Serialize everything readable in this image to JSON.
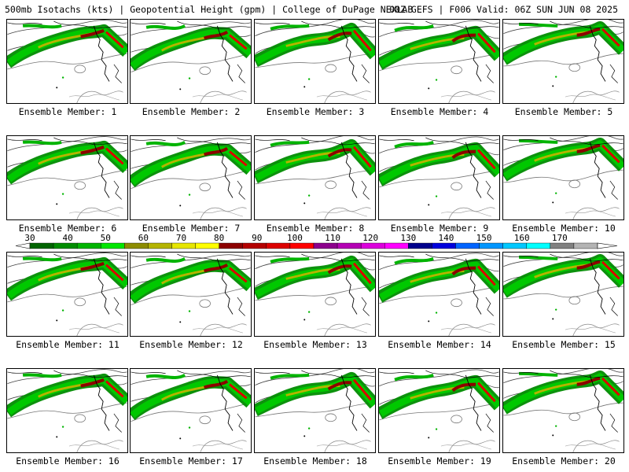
{
  "header": {
    "left": "500mb Isotachs (kts) | Geopotential Height (gpm) | College of DuPage NEXLAB",
    "right": "00Z GEFS | F006 Valid: 06Z SUN JUN 08 2025"
  },
  "members": [
    {
      "label": "Ensemble Member: 1"
    },
    {
      "label": "Ensemble Member: 2"
    },
    {
      "label": "Ensemble Member: 3"
    },
    {
      "label": "Ensemble Member: 4"
    },
    {
      "label": "Ensemble Member: 5"
    },
    {
      "label": "Ensemble Member: 6"
    },
    {
      "label": "Ensemble Member: 7"
    },
    {
      "label": "Ensemble Member: 8"
    },
    {
      "label": "Ensemble Member: 9"
    },
    {
      "label": "Ensemble Member: 10"
    },
    {
      "label": "Ensemble Member: 11"
    },
    {
      "label": "Ensemble Member: 12"
    },
    {
      "label": "Ensemble Member: 13"
    },
    {
      "label": "Ensemble Member: 14"
    },
    {
      "label": "Ensemble Member: 15"
    },
    {
      "label": "Ensemble Member: 16"
    },
    {
      "label": "Ensemble Member: 17"
    },
    {
      "label": "Ensemble Member: 18"
    },
    {
      "label": "Ensemble Member: 19"
    },
    {
      "label": "Ensemble Member: 20"
    }
  ],
  "colorbar": {
    "labels": [
      "30",
      "40",
      "50",
      "60",
      "70",
      "80",
      "90",
      "100",
      "110",
      "120",
      "130",
      "140",
      "150",
      "160",
      "170"
    ],
    "colors": [
      "#006400",
      "#008c00",
      "#00b400",
      "#00e600",
      "#8c8c00",
      "#b4b400",
      "#e6e600",
      "#ffff00",
      "#8c0000",
      "#b40000",
      "#dc0000",
      "#ff0000",
      "#8c008c",
      "#b400b4",
      "#dc00dc",
      "#ff00ff",
      "#00008c",
      "#0000dc",
      "#0064ff",
      "#0096ff",
      "#00c8ff",
      "#00ffff",
      "#808080",
      "#b4b4b4"
    ]
  }
}
